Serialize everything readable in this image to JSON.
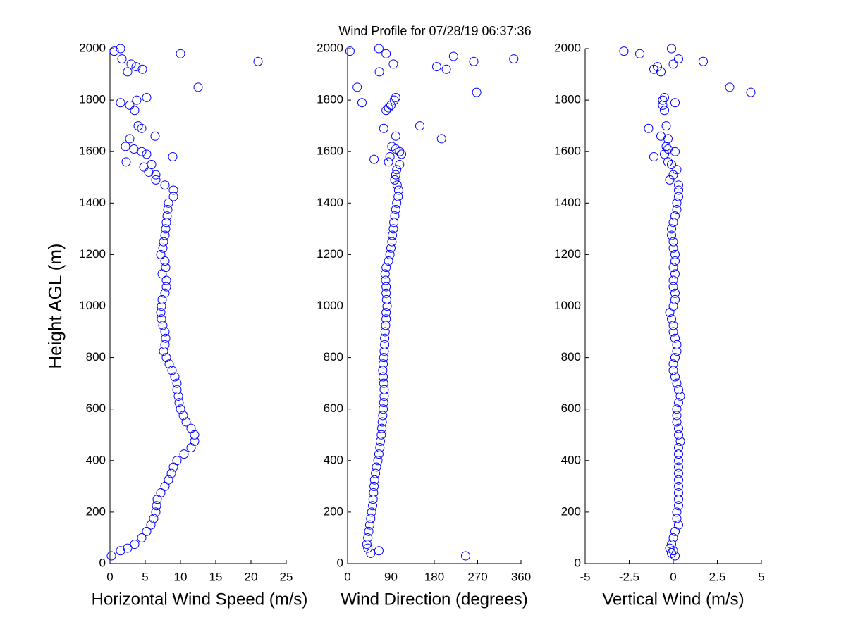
{
  "title": "Wind Profile for  07/28/19 06:37:36",
  "chart_data": [
    {
      "type": "scatter",
      "xlabel": "Horizontal Wind Speed (m/s)",
      "ylabel": "Height AGL (m)",
      "color": "#0000ff",
      "xlim": [
        0,
        25
      ],
      "xticks": [
        0,
        5,
        10,
        15,
        20,
        25
      ],
      "ylim": [
        0,
        2000
      ],
      "yticks": [
        0,
        200,
        400,
        600,
        800,
        1000,
        1200,
        1400,
        1600,
        1800,
        2000
      ],
      "x": [
        0.2,
        1.5,
        2.5,
        3.5,
        4.5,
        5.2,
        5.8,
        6.2,
        6.5,
        6.6,
        6.7,
        7.2,
        7.8,
        8.3,
        8.7,
        9.0,
        9.5,
        10.5,
        11.5,
        12.0,
        12.0,
        11.5,
        10.8,
        10.4,
        10.0,
        9.8,
        9.7,
        9.5,
        9.5,
        9.2,
        8.8,
        8.4,
        8.0,
        7.6,
        7.8,
        7.9,
        7.8,
        7.5,
        7.3,
        7.2,
        7.3,
        7.4,
        7.8,
        8.0,
        8.0,
        7.4,
        7.9,
        7.8,
        7.2,
        7.5,
        7.6,
        7.8,
        7.9,
        8.0,
        8.1,
        8.2,
        8.3,
        9.0,
        9.0,
        7.8,
        6.5,
        6.5,
        5.5,
        4.8,
        5.9,
        2.3,
        8.9,
        5.2,
        4.5,
        3.4,
        2.2,
        2.8,
        6.4,
        4.5,
        4.0,
        3.5,
        2.8,
        1.5,
        3.8,
        5.2,
        12.5,
        2.5,
        4.6,
        3.7,
        3.0,
        21.0,
        1.7,
        10.0,
        0.6,
        1.5
      ],
      "values": [
        30,
        50,
        60,
        75,
        100,
        125,
        150,
        175,
        200,
        225,
        250,
        275,
        300,
        325,
        350,
        375,
        400,
        425,
        450,
        475,
        500,
        525,
        550,
        575,
        600,
        625,
        650,
        675,
        700,
        725,
        750,
        775,
        800,
        825,
        850,
        875,
        900,
        925,
        950,
        975,
        1000,
        1025,
        1050,
        1075,
        1100,
        1125,
        1150,
        1175,
        1200,
        1225,
        1250,
        1275,
        1300,
        1325,
        1350,
        1375,
        1400,
        1425,
        1450,
        1470,
        1490,
        1510,
        1520,
        1540,
        1550,
        1560,
        1580,
        1590,
        1600,
        1610,
        1620,
        1650,
        1660,
        1690,
        1700,
        1760,
        1780,
        1790,
        1800,
        1810,
        1850,
        1910,
        1920,
        1930,
        1940,
        1950,
        1960,
        1980,
        1990,
        2000
      ]
    },
    {
      "type": "scatter",
      "xlabel": "Wind Direction (degrees)",
      "color": "#0000ff",
      "xlim": [
        0,
        360
      ],
      "xticks": [
        0,
        90,
        180,
        270,
        360
      ],
      "ylim": [
        0,
        2000
      ],
      "yticks": [
        0,
        200,
        400,
        600,
        800,
        1000,
        1200,
        1400,
        1600,
        1800,
        2000
      ],
      "x": [
        245,
        48,
        65,
        42,
        40,
        42,
        44,
        46,
        48,
        50,
        52,
        53,
        54,
        55,
        56,
        58,
        60,
        63,
        65,
        67,
        68,
        70,
        71,
        72,
        73,
        74,
        75,
        76,
        76,
        75,
        74,
        73,
        74,
        75,
        76,
        77,
        77,
        78,
        79,
        80,
        80,
        82,
        81,
        80,
        80,
        79,
        78,
        80,
        85,
        88,
        90,
        92,
        93,
        95,
        96,
        98,
        100,
        102,
        105,
        106,
        103,
        98,
        100,
        102,
        108,
        85,
        55,
        88,
        112,
        108,
        100,
        92,
        195,
        100,
        75,
        150,
        80,
        85,
        90,
        30,
        97,
        100,
        268,
        20,
        66,
        205,
        185,
        95,
        262,
        345,
        220,
        80,
        5,
        65
      ],
      "values": [
        30,
        40,
        50,
        60,
        75,
        100,
        125,
        150,
        175,
        200,
        225,
        250,
        275,
        300,
        325,
        350,
        375,
        400,
        425,
        450,
        475,
        500,
        525,
        550,
        575,
        600,
        625,
        650,
        675,
        700,
        725,
        750,
        775,
        800,
        825,
        850,
        875,
        900,
        925,
        950,
        975,
        1000,
        1025,
        1050,
        1075,
        1100,
        1125,
        1150,
        1175,
        1200,
        1225,
        1250,
        1275,
        1300,
        1325,
        1350,
        1375,
        1400,
        1425,
        1450,
        1470,
        1490,
        1510,
        1530,
        1550,
        1560,
        1570,
        1580,
        1590,
        1600,
        1610,
        1620,
        1650,
        1660,
        1690,
        1700,
        1760,
        1770,
        1780,
        1790,
        1800,
        1810,
        1830,
        1850,
        1910,
        1920,
        1930,
        1940,
        1950,
        1960,
        1970,
        1980,
        1990,
        2000
      ]
    },
    {
      "type": "scatter",
      "xlabel": "Vertical Wind (m/s)",
      "color": "#0000ff",
      "xlim": [
        -5,
        5
      ],
      "xticks": [
        -5,
        -2.5,
        0,
        2.5,
        5
      ],
      "ylim": [
        0,
        2000
      ],
      "yticks": [
        0,
        200,
        400,
        600,
        800,
        1000,
        1200,
        1400,
        1600,
        1800,
        2000
      ],
      "x": [
        0.1,
        -0.1,
        0.0,
        -0.2,
        -0.1,
        0.0,
        0.1,
        0.3,
        0.2,
        0.2,
        0.3,
        0.3,
        0.3,
        0.3,
        0.3,
        0.3,
        0.3,
        0.3,
        0.3,
        0.3,
        0.4,
        0.3,
        0.3,
        0.2,
        0.2,
        0.2,
        0.3,
        0.4,
        0.3,
        0.2,
        0.1,
        0.0,
        0.0,
        0.1,
        0.2,
        0.2,
        0.1,
        0.0,
        0.0,
        -0.1,
        -0.2,
        0.0,
        0.1,
        0.1,
        0.0,
        0.0,
        0.1,
        0.0,
        0.1,
        0.1,
        0.0,
        0.0,
        -0.1,
        -0.1,
        0.0,
        0.1,
        0.2,
        0.2,
        0.3,
        0.3,
        0.3,
        -0.2,
        0.0,
        0.2,
        -0.1,
        -0.3,
        -1.1,
        -0.5,
        0.1,
        -0.3,
        -0.4,
        -0.3,
        -0.7,
        -1.4,
        -0.4,
        -0.5,
        -0.6,
        0.1,
        -0.6,
        -0.5,
        4.4,
        3.2,
        -0.7,
        -1.1,
        -0.9,
        0.0,
        1.7,
        0.3,
        -1.9,
        -2.8,
        -0.1
      ],
      "values": [
        30,
        40,
        50,
        60,
        75,
        100,
        125,
        150,
        175,
        200,
        225,
        250,
        275,
        300,
        325,
        350,
        375,
        400,
        425,
        450,
        475,
        500,
        525,
        550,
        575,
        600,
        625,
        650,
        675,
        700,
        725,
        750,
        775,
        800,
        825,
        850,
        875,
        900,
        925,
        950,
        975,
        1000,
        1025,
        1050,
        1075,
        1100,
        1125,
        1150,
        1175,
        1200,
        1225,
        1250,
        1275,
        1300,
        1325,
        1350,
        1375,
        1400,
        1425,
        1450,
        1470,
        1490,
        1510,
        1530,
        1550,
        1560,
        1580,
        1590,
        1600,
        1610,
        1620,
        1650,
        1660,
        1690,
        1700,
        1760,
        1780,
        1790,
        1800,
        1810,
        1830,
        1850,
        1910,
        1920,
        1930,
        1940,
        1950,
        1960,
        1980,
        1990,
        2000
      ]
    }
  ]
}
